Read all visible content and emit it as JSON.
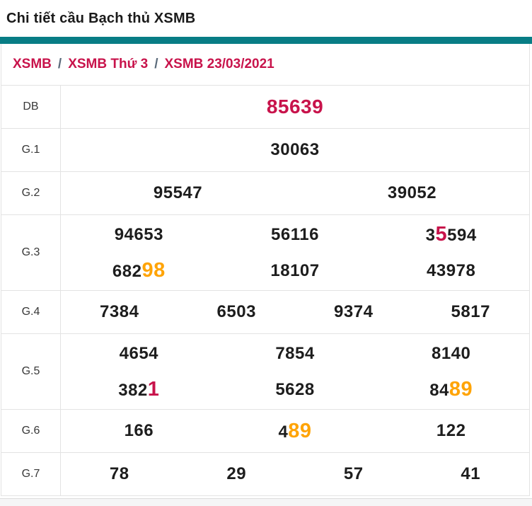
{
  "page": {
    "title": "Chi tiết cầu Bạch thủ XSMB"
  },
  "breadcrumb": {
    "separator": "/",
    "items": [
      "XSMB",
      "XSMB Thứ 3",
      "XSMB 23/03/2021"
    ]
  },
  "colors": {
    "accent_teal": "#087d85",
    "crimson": "#c8134b",
    "orange": "#ffa406",
    "number_text": "#1d1d1d",
    "border": "#e3e3e3"
  },
  "results": {
    "rows": [
      {
        "label": "DB",
        "lines": [
          [
            [
              {
                "t": "85639",
                "role": "special"
              }
            ]
          ]
        ]
      },
      {
        "label": "G.1",
        "lines": [
          [
            [
              {
                "t": "30063"
              }
            ]
          ]
        ]
      },
      {
        "label": "G.2",
        "lines": [
          [
            [
              {
                "t": "95547"
              }
            ],
            [
              {
                "t": "39052"
              }
            ]
          ]
        ]
      },
      {
        "label": "G.3",
        "lines": [
          [
            [
              {
                "t": "94653"
              }
            ],
            [
              {
                "t": "56116"
              }
            ],
            [
              {
                "t": "3"
              },
              {
                "t": "5",
                "role": "hl-red"
              },
              {
                "t": "594"
              }
            ]
          ],
          [
            [
              {
                "t": "682"
              },
              {
                "t": "98",
                "role": "hl-orange"
              }
            ],
            [
              {
                "t": "18107"
              }
            ],
            [
              {
                "t": "43978"
              }
            ]
          ]
        ]
      },
      {
        "label": "G.4",
        "lines": [
          [
            [
              {
                "t": "7384"
              }
            ],
            [
              {
                "t": "6503"
              }
            ],
            [
              {
                "t": "9374"
              }
            ],
            [
              {
                "t": "5817"
              }
            ]
          ]
        ]
      },
      {
        "label": "G.5",
        "lines": [
          [
            [
              {
                "t": "4654"
              }
            ],
            [
              {
                "t": "7854"
              }
            ],
            [
              {
                "t": "8140"
              }
            ]
          ],
          [
            [
              {
                "t": "382"
              },
              {
                "t": "1",
                "role": "hl-red"
              }
            ],
            [
              {
                "t": "5628"
              }
            ],
            [
              {
                "t": "84"
              },
              {
                "t": "89",
                "role": "hl-orange"
              }
            ]
          ]
        ]
      },
      {
        "label": "G.6",
        "lines": [
          [
            [
              {
                "t": "166"
              }
            ],
            [
              {
                "t": "4"
              },
              {
                "t": "89",
                "role": "hl-orange"
              }
            ],
            [
              {
                "t": "122"
              }
            ]
          ]
        ]
      },
      {
        "label": "G.7",
        "lines": [
          [
            [
              {
                "t": "78"
              }
            ],
            [
              {
                "t": "29"
              }
            ],
            [
              {
                "t": "57"
              }
            ],
            [
              {
                "t": "41"
              }
            ]
          ]
        ]
      }
    ]
  }
}
